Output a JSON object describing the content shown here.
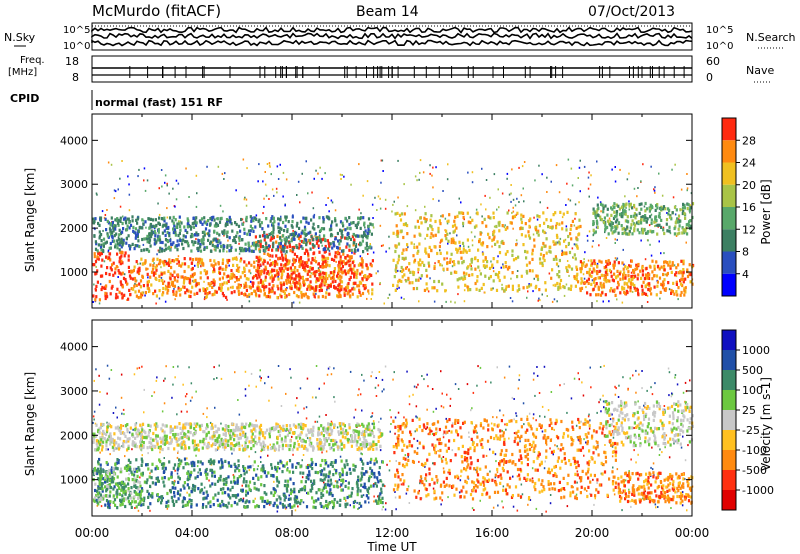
{
  "header": {
    "station": "McMurdo (fitACF)",
    "beam": "Beam 14",
    "date": "07/Oct/2013"
  },
  "top_panel": {
    "left_label": "N.Sky",
    "right_label": "N.Search",
    "left_ticks": [
      "10^5",
      "10^0"
    ],
    "right_ticks": [
      "10^5",
      "10^0"
    ]
  },
  "freq_panel": {
    "left_label_1": "Freq.",
    "left_label_2": "[MHz]",
    "right_label": "Nave",
    "left_ticks": [
      "18",
      "8"
    ],
    "right_ticks": [
      "60",
      "0"
    ]
  },
  "cpid": {
    "label": "CPID",
    "text": "normal (fast) 151 RF"
  },
  "chart_data": [
    {
      "type": "heatmap",
      "xlabel": "Time UT",
      "ylabel": "Slant Range [km]",
      "x_ticks": [
        "00:00",
        "04:00",
        "08:00",
        "12:00",
        "16:00",
        "20:00",
        "00:00"
      ],
      "y_ticks": [
        "1000",
        "2000",
        "3000",
        "4000"
      ],
      "ylim": [
        180,
        4600
      ],
      "colorbar_label": "Power [dB]",
      "colorbar_ticks": [
        "4",
        "8",
        "12",
        "16",
        "20",
        "24",
        "28"
      ],
      "colors": [
        "#0000ff",
        "#2a4fbf",
        "#3c7f62",
        "#58a86a",
        "#a9c447",
        "#f0c020",
        "#ff8a10",
        "#ff2a10"
      ],
      "bands": [
        {
          "t0": 0.0,
          "t1": 1.5,
          "r0": 400,
          "r1": 1500,
          "level": 7
        },
        {
          "t0": 1.5,
          "t1": 11.2,
          "r0": 450,
          "r1": 1350,
          "level": 6
        },
        {
          "t0": 6.5,
          "t1": 10.5,
          "r0": 600,
          "r1": 1900,
          "level": 7
        },
        {
          "t0": 0.0,
          "t1": 11.2,
          "r0": 1500,
          "r1": 2300,
          "level": 2
        },
        {
          "t0": 12.0,
          "t1": 19.5,
          "r0": 600,
          "r1": 2400,
          "level": 5
        },
        {
          "t0": 19.5,
          "t1": 24.0,
          "r0": 500,
          "r1": 1300,
          "level": 6
        },
        {
          "t0": 20.0,
          "t1": 24.0,
          "r0": 1900,
          "r1": 2600,
          "level": 3
        }
      ]
    },
    {
      "type": "heatmap",
      "xlabel": "Time UT",
      "ylabel": "Slant Range [km]",
      "x_ticks": [
        "00:00",
        "04:00",
        "08:00",
        "12:00",
        "16:00",
        "20:00",
        "00:00"
      ],
      "y_ticks": [
        "1000",
        "2000",
        "3000",
        "4000"
      ],
      "ylim": [
        180,
        4600
      ],
      "colorbar_label": "Velocity [m s-1]",
      "colorbar_ticks": [
        "1000",
        "500",
        "100",
        "25",
        "-25",
        "-100",
        "-500",
        "-1000"
      ],
      "colors": [
        "#1010c0",
        "#2050a8",
        "#3c8a68",
        "#6cc840",
        "#c8c8c8",
        "#ffc020",
        "#ff8a10",
        "#ff3010",
        "#e00000"
      ],
      "bands": [
        {
          "t0": 0.0,
          "t1": 11.6,
          "r0": 400,
          "r1": 1500,
          "level": 2
        },
        {
          "t0": 0.0,
          "t1": 2.0,
          "r0": 500,
          "r1": 1300,
          "level": 3
        },
        {
          "t0": 0.0,
          "t1": 11.6,
          "r0": 1700,
          "r1": 2300,
          "level": 4
        },
        {
          "t0": 12.0,
          "t1": 21.0,
          "r0": 600,
          "r1": 2400,
          "level": 6
        },
        {
          "t0": 20.5,
          "t1": 24.0,
          "r0": 1800,
          "r1": 2800,
          "level": 4
        },
        {
          "t0": 21.0,
          "t1": 24.0,
          "r0": 500,
          "r1": 1200,
          "level": 6
        }
      ]
    }
  ]
}
